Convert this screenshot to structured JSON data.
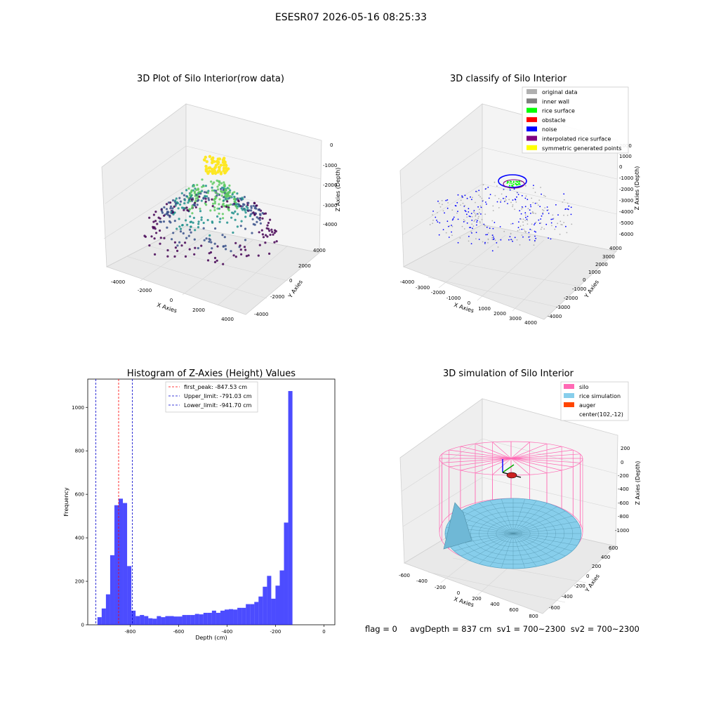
{
  "suptitle": "ESESR07 2026-05-16 08:25:33",
  "status_text": "flag = 0     avgDepth = 837 cm  sv1 = 700~2300  sv2 = 700~2300",
  "panels": {
    "raw": {
      "title": "3D Plot of Silo Interior(row data)",
      "xlabel": "X Axies",
      "ylabel": "Y Axies",
      "zlabel": "Z Axies (Depth)",
      "xticks": [
        "-4000",
        "-2000",
        "0",
        "2000",
        "4000"
      ],
      "yticks": [
        "-4000",
        "-2000",
        "0",
        "2000",
        "4000"
      ],
      "zticks": [
        "0",
        "-1000",
        "-2000",
        "-3000",
        "-4000"
      ],
      "colormap": [
        "#440154",
        "#3b528b",
        "#21918c",
        "#5ec962",
        "#fde725"
      ]
    },
    "classify": {
      "title": "3D classify of Silo Interior",
      "xlabel": "X Axies",
      "ylabel": "Y Axies",
      "zlabel": "Z Axies (Depth)",
      "xticks": [
        "-4000",
        "-3000",
        "-2000",
        "-1000",
        "0",
        "1000",
        "2000",
        "3000",
        "4000"
      ],
      "yticks": [
        "-4000",
        "-3000",
        "-2000",
        "-1000",
        "0",
        "1000",
        "2000",
        "3000",
        "4000"
      ],
      "zticks": [
        "2000",
        "1000",
        "0",
        "-1000",
        "-2000",
        "-3000",
        "-4000",
        "-5000",
        "-6000"
      ],
      "legend": [
        {
          "label": "original data",
          "color": "#b0b0b0"
        },
        {
          "label": "inner wall",
          "color": "#808080"
        },
        {
          "label": "rice surface",
          "color": "#00ff00"
        },
        {
          "label": "obstacle",
          "color": "#ff0000"
        },
        {
          "label": "noise",
          "color": "#0000ff"
        },
        {
          "label": "interpolated rice surface",
          "color": "#800080"
        },
        {
          "label": "symmetric generated points",
          "color": "#ffff00"
        }
      ]
    },
    "simulation": {
      "title": "3D simulation of Silo Interior",
      "xlabel": "X Axies",
      "ylabel": "Y Axies",
      "zlabel": "Z Axies (Depth)",
      "xticks": [
        "-600",
        "-400",
        "-200",
        "0",
        "200",
        "400",
        "600",
        "800"
      ],
      "yticks": [
        "-600",
        "-400",
        "-200",
        "0",
        "200",
        "400",
        "600"
      ],
      "zticks": [
        "200",
        "0",
        "-200",
        "-400",
        "-600",
        "-800",
        "-1000"
      ],
      "legend": [
        {
          "label": "silo",
          "color": "#ff69b4"
        },
        {
          "label": "rice simulation",
          "color": "#87ceeb"
        },
        {
          "label": "auger",
          "color": "#ff4500"
        },
        {
          "label": "center(102,-12)",
          "color": ""
        }
      ]
    }
  },
  "chart_data": {
    "type": "bar",
    "title": "Histogram of Z-Axies (Height) Values",
    "xlabel": "Depth (cm)",
    "ylabel": "Frequency",
    "xlim": [
      -975,
      45
    ],
    "ylim": [
      0,
      1130
    ],
    "xticks": [
      -800,
      -600,
      -400,
      -200,
      0
    ],
    "yticks": [
      0,
      200,
      400,
      600,
      800,
      1000
    ],
    "bin_width": 17.5,
    "bin_start": -935,
    "color": "#0000ff",
    "values": [
      35,
      75,
      140,
      320,
      550,
      580,
      560,
      270,
      65,
      40,
      45,
      40,
      30,
      28,
      40,
      35,
      40,
      40,
      38,
      38,
      45,
      45,
      45,
      50,
      48,
      55,
      55,
      65,
      55,
      65,
      70,
      72,
      70,
      78,
      78,
      95,
      95,
      105,
      130,
      175,
      225,
      120,
      180,
      250,
      470,
      1075
    ],
    "lines": [
      {
        "label": "first_peak: -847.53 cm",
        "value": -847.53,
        "color": "#ff0000"
      },
      {
        "label": "Upper_limit: -791.03 cm",
        "value": -791.03,
        "color": "#0000cc"
      },
      {
        "label": "Lower_limit: -941.70 cm",
        "value": -941.7,
        "color": "#0000cc"
      }
    ],
    "legend_position": "top-center"
  }
}
